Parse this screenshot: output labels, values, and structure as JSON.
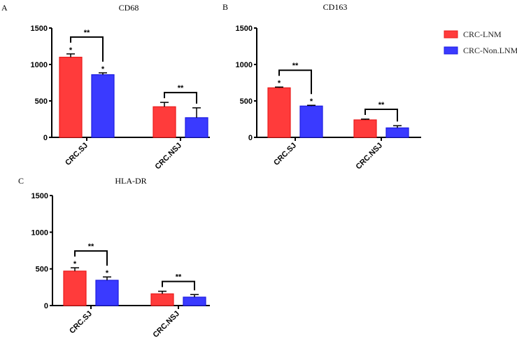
{
  "legend": {
    "items": [
      {
        "label": "CRC-LNM",
        "color": "#ff3b3b",
        "edge": "#e81c1c"
      },
      {
        "label": "CRC-Non.LNM",
        "color": "#3a3aff",
        "edge": "#1c1ce0"
      }
    ]
  },
  "chart_data": [
    {
      "type": "bar",
      "panel": "A",
      "title": "CD68",
      "xlabel": "",
      "ylabel": "",
      "ylim": [
        0,
        1500
      ],
      "yticks": [
        0,
        500,
        1000,
        1500
      ],
      "categories": [
        "CRC.SJ",
        "CRC.NSJ"
      ],
      "series": [
        {
          "name": "CRC-LNM",
          "values": [
            1100,
            420
          ],
          "error": [
            45,
            60
          ],
          "marks": [
            "*",
            ""
          ]
        },
        {
          "name": "CRC-Non.LNM",
          "values": [
            860,
            270
          ],
          "error": [
            25,
            135
          ],
          "marks": [
            "*",
            ""
          ]
        }
      ],
      "comparisons": [
        {
          "category": "CRC.SJ",
          "label": "**"
        },
        {
          "category": "CRC.NSJ",
          "label": "**"
        }
      ],
      "grid": false
    },
    {
      "type": "bar",
      "panel": "B",
      "title": "CD163",
      "xlabel": "",
      "ylabel": "",
      "ylim": [
        0,
        1500
      ],
      "yticks": [
        0,
        500,
        1000,
        1500
      ],
      "categories": [
        "CRC.SJ",
        "CRC.NSJ"
      ],
      "series": [
        {
          "name": "CRC-LNM",
          "values": [
            680,
            240
          ],
          "error": [
            10,
            10
          ],
          "marks": [
            "*",
            ""
          ]
        },
        {
          "name": "CRC-Non.LNM",
          "values": [
            430,
            130
          ],
          "error": [
            10,
            30
          ],
          "marks": [
            "*",
            ""
          ]
        }
      ],
      "comparisons": [
        {
          "category": "CRC.SJ",
          "label": "**"
        },
        {
          "category": "CRC.NSJ",
          "label": "**"
        }
      ],
      "grid": false
    },
    {
      "type": "bar",
      "panel": "C",
      "title": "HLA-DR",
      "xlabel": "",
      "ylabel": "",
      "ylim": [
        0,
        1500
      ],
      "yticks": [
        0,
        500,
        1000,
        1500
      ],
      "categories": [
        "CRC.SJ",
        "CRC.NSJ"
      ],
      "series": [
        {
          "name": "CRC-LNM",
          "values": [
            470,
            160
          ],
          "error": [
            45,
            35
          ],
          "marks": [
            "*",
            ""
          ]
        },
        {
          "name": "CRC-Non.LNM",
          "values": [
            345,
            115
          ],
          "error": [
            45,
            35
          ],
          "marks": [
            "*",
            ""
          ]
        }
      ],
      "comparisons": [
        {
          "category": "CRC.SJ",
          "label": "**"
        },
        {
          "category": "CRC.NSJ",
          "label": "**"
        }
      ],
      "grid": false
    }
  ]
}
